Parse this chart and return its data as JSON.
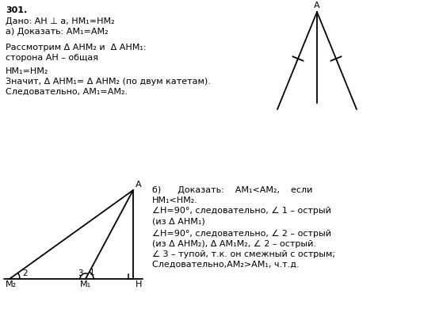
{
  "bg_color": "#ffffff",
  "title_num": "301.",
  "given_line1": "Дано: AH ⊥ a, HM₁=HM₂",
  "given_line2": "а) Доказать: AM₁=AM₂",
  "proof_line1": "Рассмотрим Δ AHM₂ и  Δ AHM₁:",
  "proof_line2": "сторона AH – общая",
  "proof_line3": "HM₁=HM₂",
  "proof_line4": "Значит, Δ AHM₁= Δ AHM₂ (по двум катетам).",
  "proof_line5": "Следовательно, AM₁=AM₂.",
  "part_b_title": "б)      Доказать:    AM₁<AM₂,    если",
  "part_b_line2": "HM₁<HM₂.",
  "part_b_line3": "∠H=90°, следовательно, ∠ 1 – острый",
  "part_b_line4": "(из Δ AHM₁)",
  "part_b_line5": "∠H=90°, следовательно, ∠ 2 – острый",
  "part_b_line6": "(из Δ AHM₂), Δ AM₁M₂, ∠ 2 – острый.",
  "part_b_line7": "∠ 3 – тупой, т.к. он смежный с острым;",
  "part_b_line8": "Следовательно,AM₂>AM₁, ч.т.д."
}
